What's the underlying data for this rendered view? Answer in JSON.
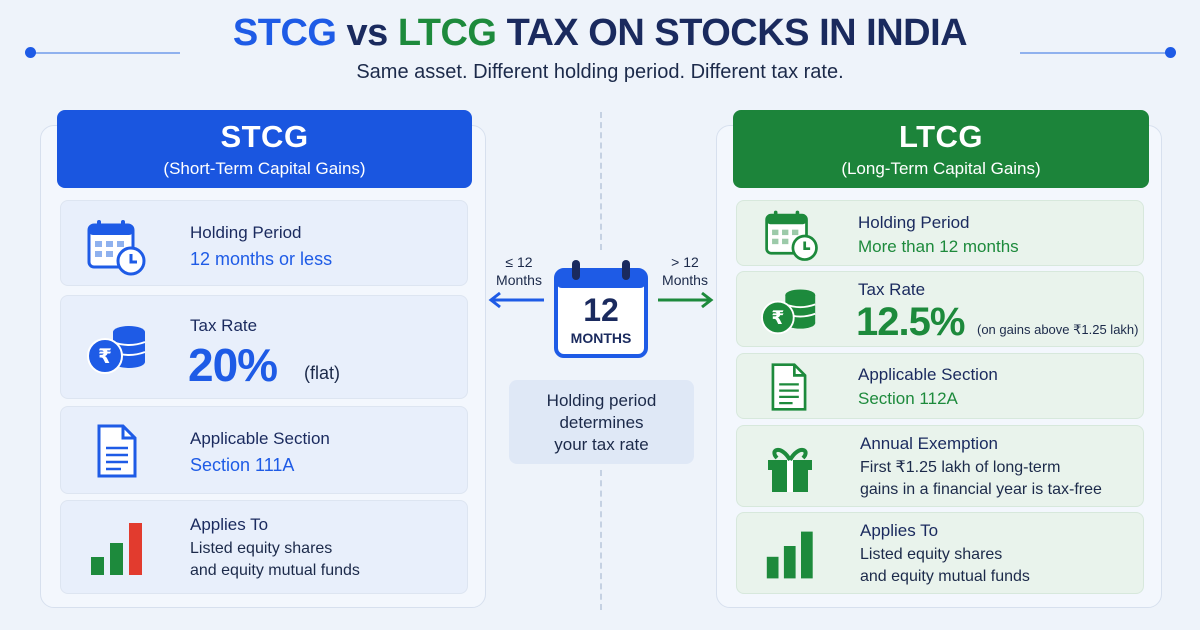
{
  "header": {
    "title_stcg": "STCG",
    "title_vs": "vs",
    "title_ltcg": "LTCG",
    "title_rest": "TAX ON STOCKS IN INDIA",
    "subtitle": "Same asset. Different holding period. Different tax rate."
  },
  "stcg": {
    "title": "STCG",
    "subtitle": "(Short-Term Capital Gains)",
    "holding_label": "Holding Period",
    "holding_value": "12 months or less",
    "rate_label": "Tax Rate",
    "rate_value": "20%",
    "rate_note": "(flat)",
    "section_label": "Applicable Section",
    "section_value": "Section 111A",
    "applies_label": "Applies To",
    "applies_line1": "Listed equity shares",
    "applies_line2": "and equity mutual funds"
  },
  "ltcg": {
    "title": "LTCG",
    "subtitle": "(Long-Term Capital Gains)",
    "holding_label": "Holding Period",
    "holding_value": "More than 12 months",
    "rate_label": "Tax Rate",
    "rate_value": "12.5%",
    "rate_note": "(on gains above ₹1.25 lakh)",
    "section_label": "Applicable Section",
    "section_value": "Section 112A",
    "exemption_label": "Annual Exemption",
    "exemption_line1": "First ₹1.25 lakh of long-term",
    "exemption_line2": "gains in a financial year is tax-free",
    "applies_label": "Applies To",
    "applies_line1": "Listed equity shares",
    "applies_line2": "and equity mutual funds"
  },
  "center": {
    "left_arrow_line1": "≤ 12",
    "left_arrow_line2": "Months",
    "right_arrow_line1": "> 12",
    "right_arrow_line2": "Months",
    "calendar_number": "12",
    "calendar_unit": "MONTHS",
    "note_line1": "Holding period",
    "note_line2": "determines",
    "note_line3": "your tax rate"
  },
  "colors": {
    "stcg_blue": "#1a56e0",
    "ltcg_green": "#1c843a",
    "background": "#eef3fa"
  },
  "icons": {
    "stcg_holding": "calendar-clock-icon",
    "stcg_rate": "rupee-coins-icon",
    "stcg_section": "document-icon",
    "stcg_applies": "bar-chart-icon",
    "ltcg_holding": "calendar-clock-icon",
    "ltcg_rate": "rupee-coins-icon",
    "ltcg_section": "document-icon",
    "ltcg_exemption": "gift-icon",
    "ltcg_applies": "bar-chart-icon",
    "center": "calendar-icon"
  }
}
